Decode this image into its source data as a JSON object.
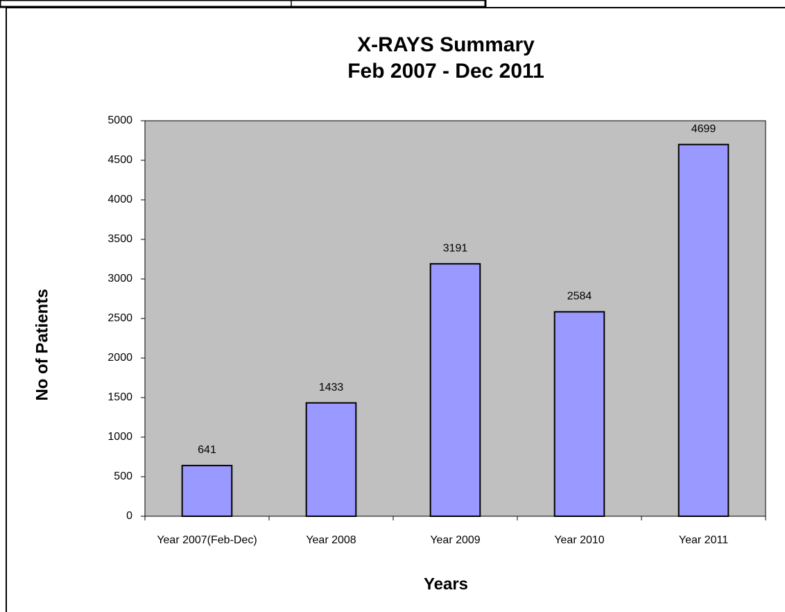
{
  "chart_data": {
    "type": "bar",
    "title": "X-RAYS Summary",
    "subtitle": "Feb 2007 - Dec 2011",
    "x_label": "Years",
    "y_label": "No of Patients",
    "categories": [
      "Year 2007(Feb-Dec)",
      "Year 2008",
      "Year 2009",
      "Year 2010",
      "Year 2011"
    ],
    "values": [
      641,
      1433,
      3191,
      2584,
      4699
    ],
    "color": "#9999ff",
    "plot_background": "#c0c0c0",
    "ylim": [
      0,
      5000
    ],
    "yticks": [
      0,
      500,
      1000,
      1500,
      2000,
      2500,
      3000,
      3500,
      4000,
      4500,
      5000
    ],
    "grid": false
  }
}
